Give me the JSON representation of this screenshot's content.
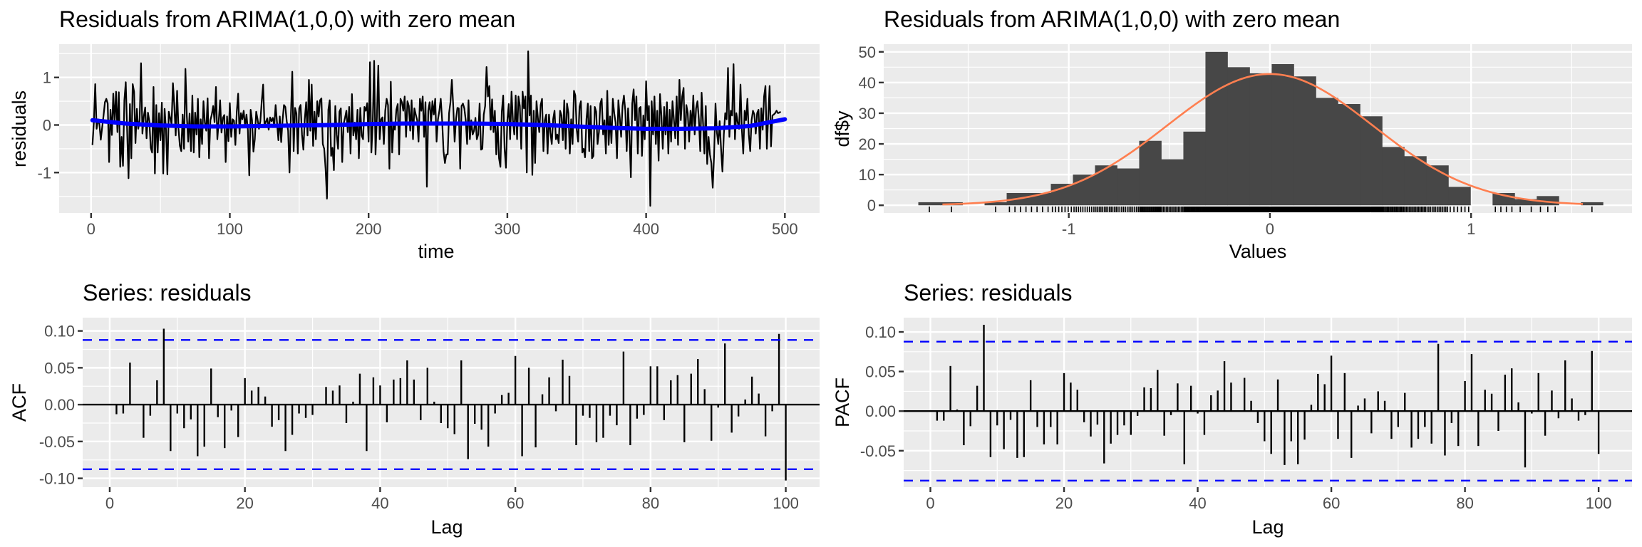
{
  "chart_data": [
    {
      "id": "residuals-timeplot",
      "type": "line",
      "title": "Residuals from ARIMA(1,0,0) with zero mean",
      "xlabel": "time",
      "ylabel": "residuals",
      "xlim": [
        -23,
        525
      ],
      "ylim": [
        -1.85,
        1.7
      ],
      "xticks": [
        0,
        100,
        200,
        300,
        400,
        500
      ],
      "xtick_labels": [
        "0",
        "100",
        "200",
        "300",
        "400",
        "500"
      ],
      "yticks": [
        -1,
        0,
        1
      ],
      "ytick_labels": [
        "-1",
        "0",
        "1"
      ],
      "grid": true,
      "line_color": "#000000",
      "smooth_color": "#0000ff",
      "smooth": {
        "x": [
          1,
          25,
          50,
          75,
          100,
          125,
          150,
          175,
          200,
          225,
          250,
          275,
          300,
          325,
          350,
          375,
          400,
          425,
          450,
          475,
          500
        ],
        "y": [
          0.1,
          0.03,
          -0.01,
          -0.03,
          -0.03,
          -0.02,
          -0.01,
          0.0,
          0.02,
          0.03,
          0.03,
          0.03,
          0.02,
          0.0,
          -0.03,
          -0.06,
          -0.08,
          -0.08,
          -0.07,
          -0.02,
          0.12
        ]
      },
      "series_seed_note": "values approximated from plot",
      "values": [
        -0.42,
        0.05,
        0.86,
        -0.08,
        0.12,
        0.02,
        -0.31,
        -0.05,
        0.2,
        0.48,
        0.55,
        0.45,
        -0.78,
        0.32,
        -0.21,
        0.66,
        0.05,
        0.7,
        -0.15,
        0.69,
        -0.88,
        -0.25,
        -0.86,
        0.52,
        0.9,
        -0.12,
        -1.12,
        0.44,
        -0.7,
        0.86,
        0.7,
        -0.38,
        0.34,
        -0.08,
        0.1,
        1.3,
        -0.18,
        0.18,
        0.37,
        -0.28,
        0.26,
        0.08,
        -0.48,
        -0.58,
        0.8,
        -1.02,
        0.42,
        -0.58,
        0.25,
        -0.32,
        0.47,
        -1.02,
        0.34,
        -0.1,
        -1.04,
        0.28,
        0.15,
        0.02,
        0.88,
        0.4,
        -0.22,
        0.72,
        -0.08,
        -0.44,
        -0.55,
        0.22,
        -0.5,
        1.18,
        0.2,
        -0.35,
        0.24,
        -0.55,
        0.62,
        -0.58,
        0.26,
        -0.2,
        0.55,
        -0.68,
        0.12,
        -0.4,
        0.5,
        0.05,
        -0.12,
        0.56,
        -0.7,
        0.1,
        0.22,
        0.4,
        0.06,
        0.8,
        -0.3,
        0.08,
        0.52,
        -0.16,
        0.15,
        0.21,
        -0.78,
        0.18,
        -0.34,
        0.46,
        -0.25,
        0.12,
        0.09,
        -0.42,
        0.28,
        0.66,
        -0.18,
        0.25,
        0.12,
        0.3,
        -0.05,
        0.22,
        -0.1,
        -1.06,
        0.32,
        0.1,
        -0.56,
        -0.3,
        0.28,
        0.12,
        -0.08,
        0.08,
        0.5,
        0.85,
        -0.02,
        0.07,
        0.14,
        -0.1,
        0.16,
        0.08,
        0.15,
        -0.02,
        0.42,
        0.05,
        -0.32,
        0.18,
        -0.36,
        0.1,
        0.42,
        0.38,
        0.08,
        -0.12,
        -1.0,
        0.18,
        1.12,
        -0.55,
        0.36,
        0.24,
        -0.6,
        0.35,
        0.42,
        -0.2,
        -0.52,
        0.12,
        0.48,
        -0.22,
        0.95,
        -0.12,
        0.85,
        -0.44,
        0.28,
        -0.3,
        0.5,
        0.18,
        0.52,
        0.56,
        -0.4,
        -0.5,
        -0.92,
        -1.55,
        0.32,
        0.52,
        -0.65,
        -0.48,
        -0.95,
        0.4,
        -0.2,
        -0.5,
        0.28,
        0.35,
        -0.78,
        0.02,
        0.15,
        0.3,
        -0.15,
        0.38,
        -0.6,
        0.65,
        -0.22,
        0.05,
        -0.3,
        0.32,
        -0.7,
        0.36,
        -0.22,
        -0.3,
        0.38,
        0.3,
        0.46,
        -0.35,
        1.32,
        -0.58,
        0.04,
        1.35,
        -0.62,
        0.18,
        1.25,
        -0.3,
        0.12,
        0.16,
        -0.4,
        0.3,
        0.55,
        0.42,
        -0.92,
        0.91,
        -0.58,
        0.0,
        -0.1,
        0.32,
        0.44,
        -0.62,
        0.55,
        0.48,
        0.3,
        0.6,
        -0.25,
        0.5,
        0.4,
        -0.12,
        0.52,
        -0.3,
        0.35,
        0.22,
        0.1,
        -0.35,
        0.55,
        0.3,
        0.6,
        -0.25,
        0.48,
        -1.3,
        0.3,
        0.48,
        0.04,
        0.5,
        0.22,
        0.55,
        -0.35,
        0.12,
        0.3,
        0.55,
        0.1,
        -0.55,
        -0.8,
        -0.62,
        -0.62,
        0.25,
        0.48,
        0.95,
        0.4,
        -0.35,
        0.12,
        0.36,
        0.35,
        -0.92,
        0.4,
        0.45,
        0.35,
        0.1,
        -0.4,
        0.52,
        -0.3,
        0.1,
        -0.2,
        -0.12,
        0.15,
        -0.3,
        -0.2,
        0.45,
        -0.52,
        -0.5,
        0.22,
        0.4,
        1.22,
        0.6,
        0.82,
        -0.1,
        0.54,
        -0.15,
        0.3,
        -0.62,
        0.05,
        -0.7,
        -0.88,
        0.28,
        0.62,
        -0.5,
        -0.9,
        0.1,
        0.44,
        -0.3,
        0.7,
        0.1,
        -0.2,
        0.62,
        -0.3,
        0.6,
        0.4,
        -0.5,
        0.7,
        0.35,
        0.6,
        -1.0,
        1.55,
        0.2,
        0.62,
        -1.05,
        0.3,
        -0.8,
        0.5,
        0.15,
        -0.15,
        0.42,
        0.55,
        -0.55,
        0.1,
        0.22,
        -0.6,
        0.22,
        -0.15,
        -0.4,
        0.12,
        0.3,
        -0.3,
        -0.2,
        -0.38,
        0.3,
        0.2,
        -0.32,
        0.52,
        -0.5,
        0.45,
        0.25,
        -0.6,
        0.12,
        -0.4,
        0.72,
        0.62,
        -0.1,
        -0.35,
        0.38,
        0.5,
        -0.58,
        -0.5,
        -0.68,
        0.12,
        0.45,
        -0.55,
        0.4,
        -0.7,
        -0.65,
        0.38,
        0.28,
        -0.4,
        -0.15,
        0.45,
        0.55,
        -0.2,
        0.1,
        -0.6,
        0.72,
        -0.42,
        0.18,
        -0.38,
        0.55,
        0.25,
        0.05,
        -0.7,
        0.52,
        0.15,
        -0.25,
        0.4,
        0.62,
        0.3,
        -0.55,
        0.35,
        -0.2,
        -1.1,
        0.45,
        0.75,
        0.1,
        0.6,
        -0.6,
        0.35,
        0.38,
        -0.65,
        0.2,
        -0.3,
        0.92,
        0.1,
        0.4,
        -1.7,
        0.5,
        -0.2,
        0.6,
        -0.4,
        0.3,
        -0.75,
        0.65,
        0.2,
        -0.5,
        0.38,
        -0.2,
        0.48,
        -0.6,
        0.32,
        -0.35,
        0.5,
        0.12,
        -0.28,
        0.6,
        -0.42,
        0.95,
        0.1,
        0.6,
        0.78,
        -0.5,
        0.42,
        0.25,
        -0.35,
        0.3,
        -0.05,
        0.62,
        -0.2,
        0.35,
        0.5,
        0.12,
        -0.55,
        0.68,
        0.05,
        -0.6,
        0.4,
        -0.82,
        -0.25,
        -0.62,
        -0.8,
        -1.32,
        -0.62,
        0.45,
        -0.15,
        -0.4,
        0.08,
        -0.5,
        -0.98,
        -0.2,
        0.25,
        0.12,
        1.2,
        -0.25,
        0.3,
        0.2,
        1.28,
        -0.3,
        0.25,
        0.05,
        -0.08,
        0.85,
        -0.1,
        -0.6,
        0.3,
        0.1,
        0.55,
        -0.2,
        -0.55,
        0.1,
        0.3,
        0.22,
        -0.18,
        0.25,
        0.32,
        -0.5,
        0.35,
        -0.1,
        0.6,
        0.82,
        -0.5,
        0.18,
        0.82,
        -0.45,
        0.2,
        0.22,
        0.25,
        0.3,
        0.25,
        0.26,
        0.28
      ]
    },
    {
      "id": "residuals-histogram",
      "type": "bar",
      "title": "Residuals from ARIMA(1,0,0) with zero mean",
      "xlabel": "Values",
      "ylabel": "df$y",
      "xlim": [
        -1.92,
        1.8
      ],
      "ylim": [
        -2.5,
        52.5
      ],
      "xticks": [
        -1,
        0,
        1
      ],
      "xtick_labels": [
        "-1",
        "0",
        "1"
      ],
      "yticks": [
        0,
        10,
        20,
        30,
        40,
        50
      ],
      "ytick_labels": [
        "0",
        "10",
        "20",
        "30",
        "40",
        "50"
      ],
      "grid": true,
      "bar_color": "#474747",
      "curve_color": "#ff7f50",
      "bin_start": -1.748,
      "bin_width": 0.1098,
      "counts": [
        1,
        1,
        0,
        1,
        4,
        4,
        7,
        10,
        13,
        12,
        21,
        15,
        24,
        50,
        45,
        43,
        46,
        42,
        35,
        33,
        29,
        19,
        16,
        13,
        6,
        0,
        4,
        2,
        3,
        0,
        1
      ],
      "normal_curve": {
        "mean": 0,
        "sd": 0.512,
        "n": 500
      },
      "rug": true
    },
    {
      "id": "acf-plot",
      "type": "bar",
      "title": "Series: residuals",
      "xlabel": "Lag",
      "ylabel": "ACF",
      "xlim": [
        -4,
        105
      ],
      "ylim": [
        -0.112,
        0.118
      ],
      "xticks": [
        0,
        20,
        40,
        60,
        80,
        100
      ],
      "xtick_labels": [
        "0",
        "20",
        "40",
        "60",
        "80",
        "100"
      ],
      "yticks": [
        -0.1,
        -0.05,
        0,
        0.05,
        0.1
      ],
      "ytick_labels": [
        "-0.10",
        "-0.05",
        "0.00",
        "0.05",
        "0.10"
      ],
      "grid": true,
      "ci": 0.0877,
      "ci_color": "#0000ff",
      "lags_start": 1,
      "values": [
        -0.013,
        -0.012,
        0.057,
        0.0,
        -0.045,
        -0.015,
        0.033,
        0.103,
        -0.063,
        -0.012,
        -0.032,
        -0.02,
        -0.07,
        -0.057,
        0.049,
        -0.017,
        -0.059,
        -0.008,
        -0.044,
        0.036,
        0.019,
        0.024,
        0.011,
        -0.03,
        -0.021,
        -0.063,
        -0.041,
        -0.012,
        -0.018,
        -0.014,
        0.0,
        0.024,
        0.019,
        0.026,
        -0.025,
        0.004,
        0.042,
        -0.063,
        0.037,
        0.026,
        -0.024,
        0.034,
        0.036,
        0.06,
        0.034,
        -0.021,
        0.05,
        0.004,
        -0.025,
        -0.032,
        -0.04,
        0.06,
        -0.074,
        -0.026,
        -0.034,
        -0.057,
        -0.012,
        0.013,
        0.016,
        0.066,
        -0.07,
        0.05,
        -0.058,
        0.014,
        0.037,
        -0.009,
        0.061,
        0.039,
        -0.055,
        -0.015,
        -0.018,
        -0.051,
        -0.045,
        -0.015,
        -0.028,
        0.072,
        -0.055,
        -0.019,
        -0.014,
        0.052,
        0.052,
        -0.021,
        0.033,
        0.04,
        -0.051,
        0.042,
        0.062,
        0.021,
        -0.049,
        -0.004,
        0.083,
        -0.038,
        -0.016,
        0.007,
        0.038,
        0.015,
        -0.043,
        -0.009,
        0.096,
        -0.103
      ]
    },
    {
      "id": "pacf-plot",
      "type": "bar",
      "title": "Series: residuals",
      "xlabel": "Lag",
      "ylabel": "PACF",
      "xlim": [
        -4,
        105
      ],
      "ylim": [
        -0.096,
        0.118
      ],
      "xticks": [
        0,
        20,
        40,
        60,
        80,
        100
      ],
      "xtick_labels": [
        "0",
        "20",
        "40",
        "60",
        "80",
        "100"
      ],
      "yticks": [
        -0.05,
        0,
        0.05,
        0.1
      ],
      "ytick_labels": [
        "-0.05",
        "0.00",
        "0.05",
        "0.10"
      ],
      "grid": true,
      "ci": 0.0877,
      "ci_color": "#0000ff",
      "lags_start": 1,
      "values": [
        -0.012,
        -0.012,
        0.057,
        0.002,
        -0.043,
        -0.019,
        0.032,
        0.109,
        -0.058,
        -0.018,
        -0.048,
        -0.011,
        -0.059,
        -0.058,
        0.039,
        -0.02,
        -0.042,
        -0.02,
        -0.042,
        0.048,
        0.036,
        0.027,
        -0.014,
        -0.032,
        -0.017,
        -0.066,
        -0.041,
        -0.03,
        -0.018,
        -0.03,
        -0.006,
        0.03,
        0.029,
        0.052,
        -0.031,
        -0.005,
        0.035,
        -0.067,
        0.032,
        -0.003,
        -0.03,
        0.02,
        0.026,
        0.063,
        0.036,
        0.0,
        0.042,
        0.013,
        -0.015,
        -0.038,
        -0.054,
        0.04,
        -0.068,
        -0.038,
        -0.067,
        -0.036,
        0.008,
        0.047,
        0.034,
        0.07,
        -0.035,
        0.048,
        -0.059,
        0.007,
        0.016,
        -0.028,
        0.025,
        0.013,
        -0.035,
        -0.02,
        0.023,
        -0.046,
        -0.035,
        -0.02,
        -0.041,
        0.085,
        -0.056,
        -0.015,
        -0.044,
        0.038,
        0.072,
        -0.044,
        0.027,
        0.022,
        -0.025,
        0.046,
        0.054,
        0.011,
        -0.071,
        -0.003,
        0.048,
        -0.031,
        0.026,
        -0.009,
        0.064,
        0.016,
        -0.012,
        -0.005,
        0.076,
        -0.054
      ]
    }
  ]
}
